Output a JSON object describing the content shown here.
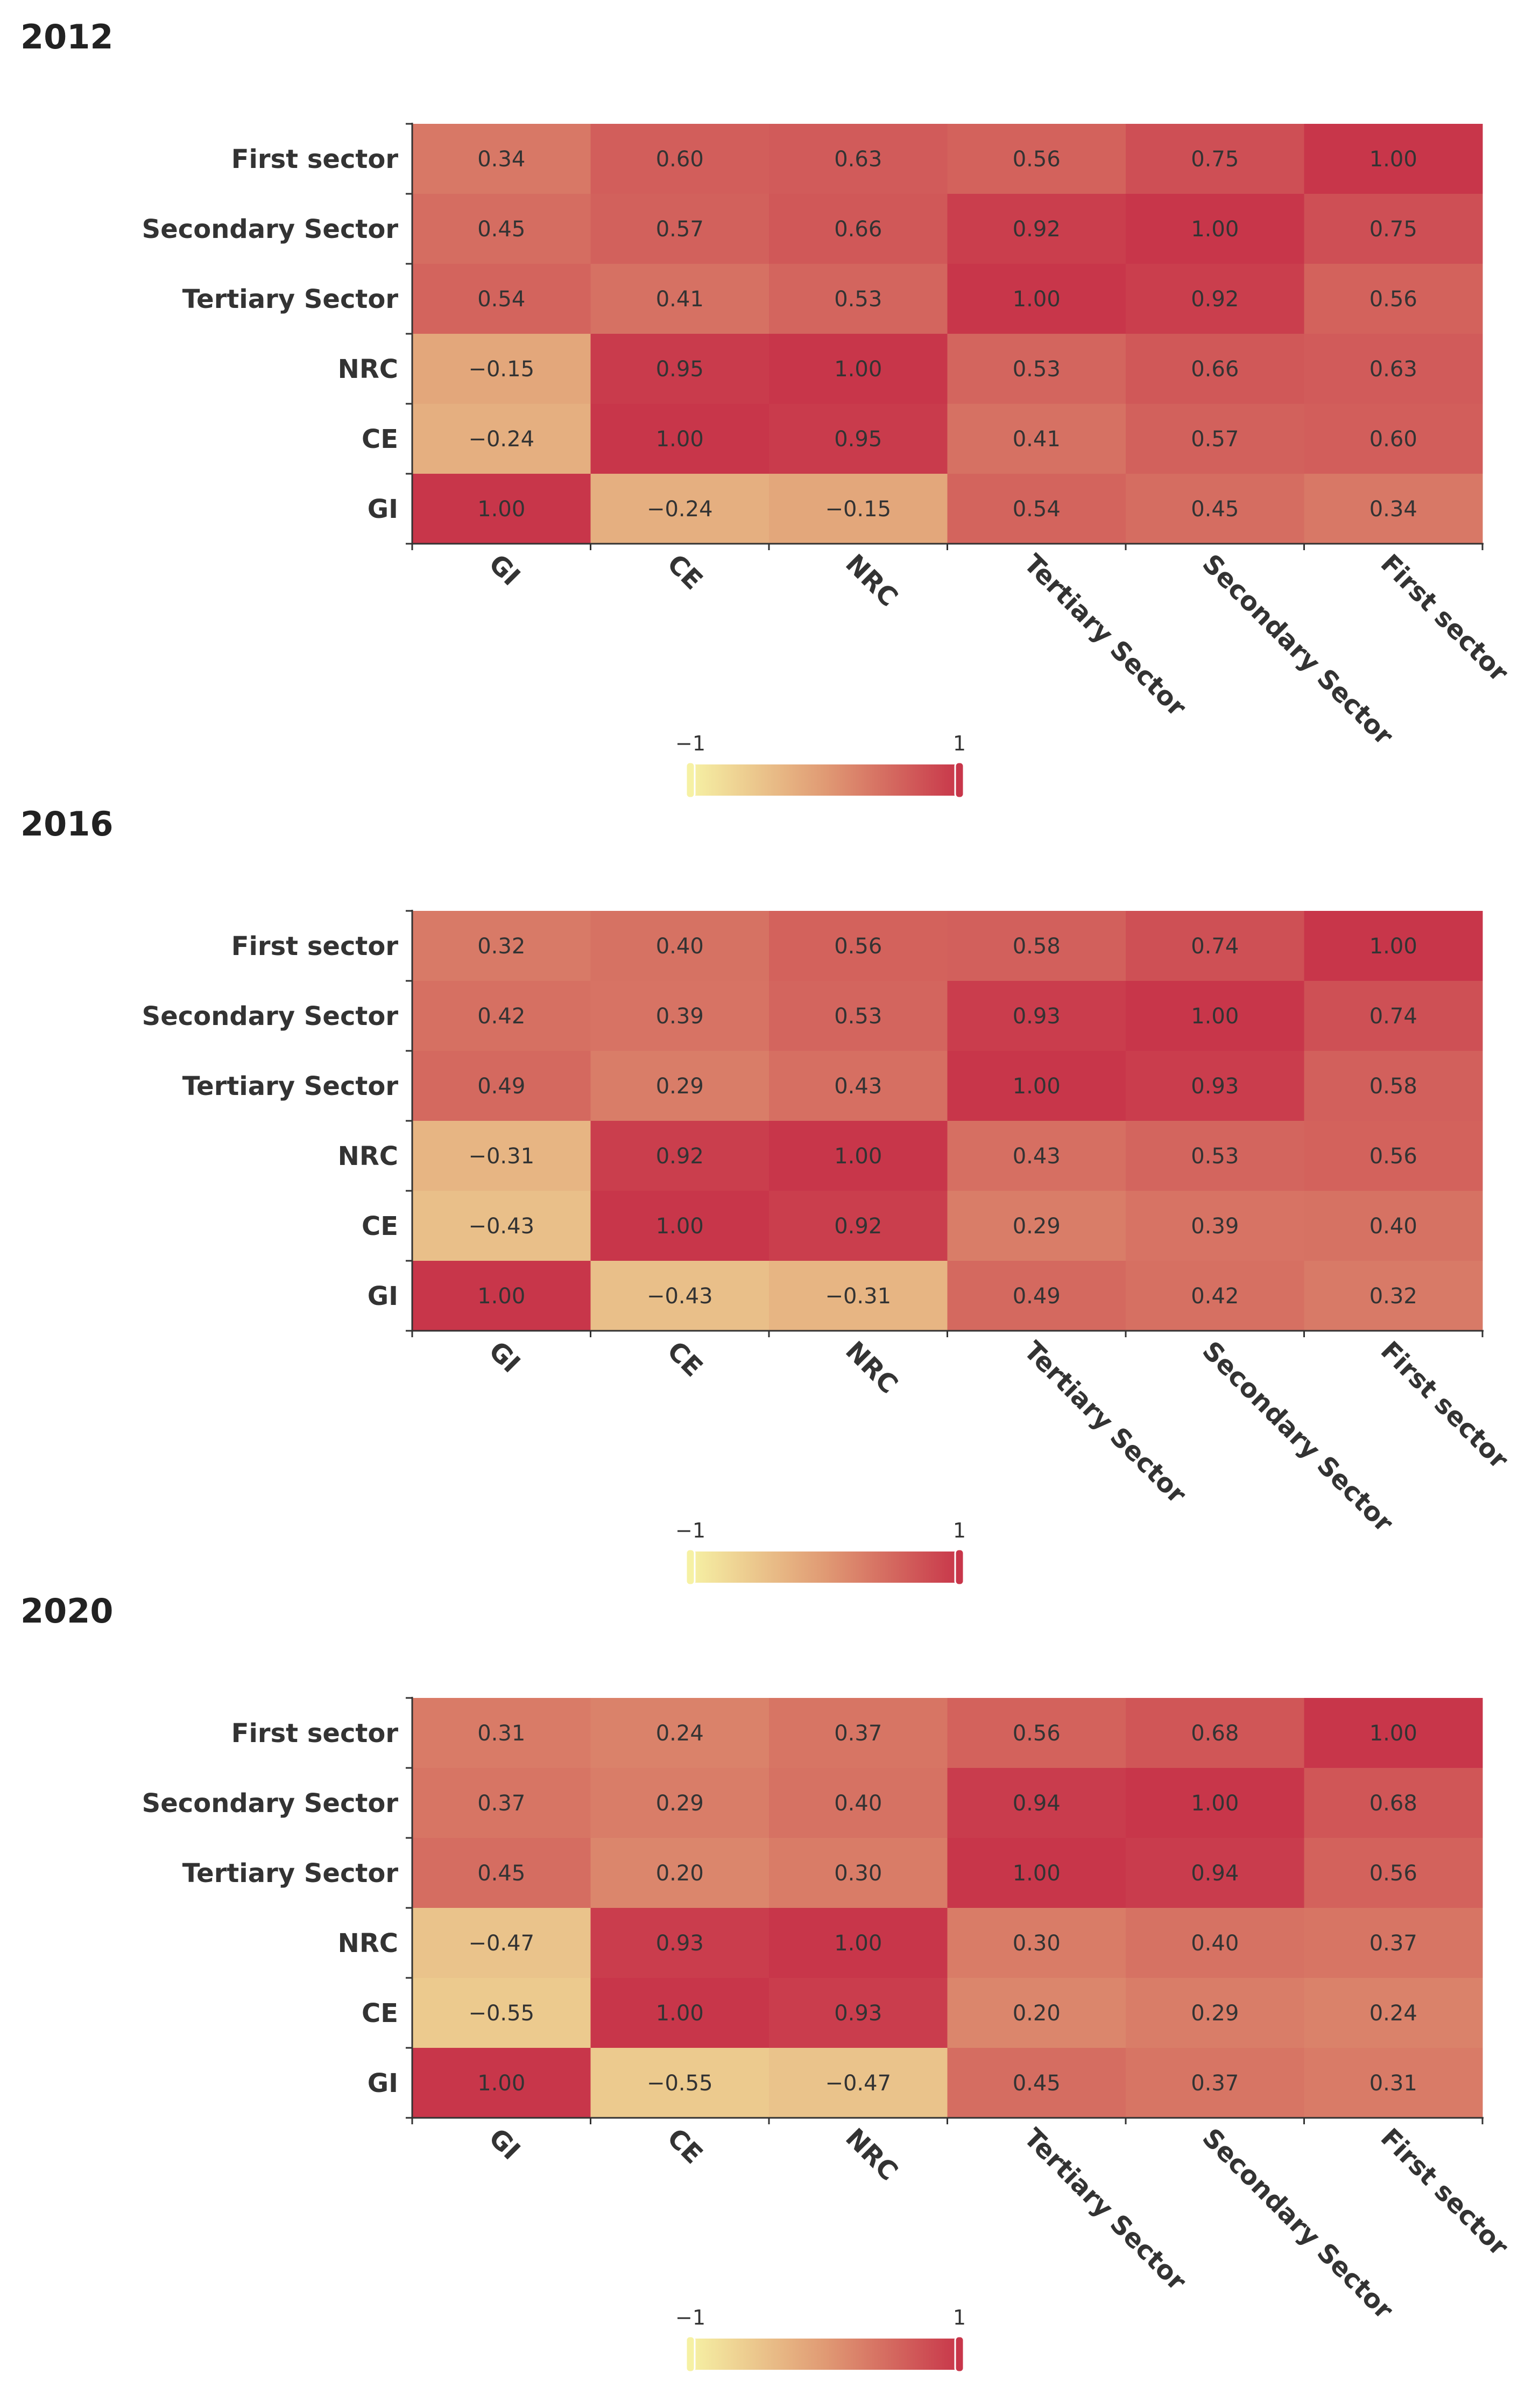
{
  "chart_data": [
    {
      "type": "heatmap",
      "title": "2012",
      "rows": [
        "First sector",
        "Secondary Sector",
        "Tertiary Sector",
        "NRC",
        "CE",
        "GI"
      ],
      "columns": [
        "GI",
        "CE",
        "NRC",
        "Tertiary Sector",
        "Secondary Sector",
        "First sector"
      ],
      "values": [
        [
          0.34,
          0.6,
          0.63,
          0.56,
          0.75,
          1.0
        ],
        [
          0.45,
          0.57,
          0.66,
          0.92,
          1.0,
          0.75
        ],
        [
          0.54,
          0.41,
          0.53,
          1.0,
          0.92,
          0.56
        ],
        [
          -0.15,
          0.95,
          1.0,
          0.53,
          0.66,
          0.63
        ],
        [
          -0.24,
          1.0,
          0.95,
          0.41,
          0.57,
          0.6
        ],
        [
          1.0,
          -0.24,
          -0.15,
          0.54,
          0.45,
          0.34
        ]
      ],
      "value_labels": [
        [
          "0.34",
          "0.60",
          "0.63",
          "0.56",
          "0.75",
          "1.00"
        ],
        [
          "0.45",
          "0.57",
          "0.66",
          "0.92",
          "1.00",
          "0.75"
        ],
        [
          "0.54",
          "0.41",
          "0.53",
          "1.00",
          "0.92",
          "0.56"
        ],
        [
          "−0.15",
          "0.95",
          "1.00",
          "0.53",
          "0.66",
          "0.63"
        ],
        [
          "−0.24",
          "1.00",
          "0.95",
          "0.41",
          "0.57",
          "0.60"
        ],
        [
          "1.00",
          "−0.24",
          "−0.15",
          "0.54",
          "0.45",
          "0.34"
        ]
      ],
      "color_range": [
        -1,
        1
      ],
      "legend_labels": [
        "−1",
        "1"
      ]
    },
    {
      "type": "heatmap",
      "title": "2016",
      "rows": [
        "First sector",
        "Secondary Sector",
        "Tertiary Sector",
        "NRC",
        "CE",
        "GI"
      ],
      "columns": [
        "GI",
        "CE",
        "NRC",
        "Tertiary Sector",
        "Secondary Sector",
        "First sector"
      ],
      "values": [
        [
          0.32,
          0.4,
          0.56,
          0.58,
          0.74,
          1.0
        ],
        [
          0.42,
          0.39,
          0.53,
          0.93,
          1.0,
          0.74
        ],
        [
          0.49,
          0.29,
          0.43,
          1.0,
          0.93,
          0.58
        ],
        [
          -0.31,
          0.92,
          1.0,
          0.43,
          0.53,
          0.56
        ],
        [
          -0.43,
          1.0,
          0.92,
          0.29,
          0.39,
          0.4
        ],
        [
          1.0,
          -0.43,
          -0.31,
          0.49,
          0.42,
          0.32
        ]
      ],
      "value_labels": [
        [
          "0.32",
          "0.40",
          "0.56",
          "0.58",
          "0.74",
          "1.00"
        ],
        [
          "0.42",
          "0.39",
          "0.53",
          "0.93",
          "1.00",
          "0.74"
        ],
        [
          "0.49",
          "0.29",
          "0.43",
          "1.00",
          "0.93",
          "0.58"
        ],
        [
          "−0.31",
          "0.92",
          "1.00",
          "0.43",
          "0.53",
          "0.56"
        ],
        [
          "−0.43",
          "1.00",
          "0.92",
          "0.29",
          "0.39",
          "0.40"
        ],
        [
          "1.00",
          "−0.43",
          "−0.31",
          "0.49",
          "0.42",
          "0.32"
        ]
      ],
      "color_range": [
        -1,
        1
      ],
      "legend_labels": [
        "−1",
        "1"
      ]
    },
    {
      "type": "heatmap",
      "title": "2020",
      "rows": [
        "First sector",
        "Secondary Sector",
        "Tertiary Sector",
        "NRC",
        "CE",
        "GI"
      ],
      "columns": [
        "GI",
        "CE",
        "NRC",
        "Tertiary Sector",
        "Secondary Sector",
        "First sector"
      ],
      "values": [
        [
          0.31,
          0.24,
          0.37,
          0.56,
          0.68,
          1.0
        ],
        [
          0.37,
          0.29,
          0.4,
          0.94,
          1.0,
          0.68
        ],
        [
          0.45,
          0.2,
          0.3,
          1.0,
          0.94,
          0.56
        ],
        [
          -0.47,
          0.93,
          1.0,
          0.3,
          0.4,
          0.37
        ],
        [
          -0.55,
          1.0,
          0.93,
          0.2,
          0.29,
          0.24
        ],
        [
          1.0,
          -0.55,
          -0.47,
          0.45,
          0.37,
          0.31
        ]
      ],
      "value_labels": [
        [
          "0.31",
          "0.24",
          "0.37",
          "0.56",
          "0.68",
          "1.00"
        ],
        [
          "0.37",
          "0.29",
          "0.40",
          "0.94",
          "1.00",
          "0.68"
        ],
        [
          "0.45",
          "0.20",
          "0.30",
          "1.00",
          "0.94",
          "0.56"
        ],
        [
          "−0.47",
          "0.93",
          "1.00",
          "0.30",
          "0.40",
          "0.37"
        ],
        [
          "−0.55",
          "1.00",
          "0.93",
          "0.20",
          "0.29",
          "0.24"
        ],
        [
          "1.00",
          "−0.55",
          "−0.47",
          "0.45",
          "0.37",
          "0.31"
        ]
      ],
      "color_range": [
        -1,
        1
      ],
      "legend_labels": [
        "−1",
        "1"
      ]
    }
  ],
  "colors": {
    "scale_low": "#f6f1a4",
    "scale_mid": "#e09a74",
    "scale_high": "#c8364a"
  }
}
